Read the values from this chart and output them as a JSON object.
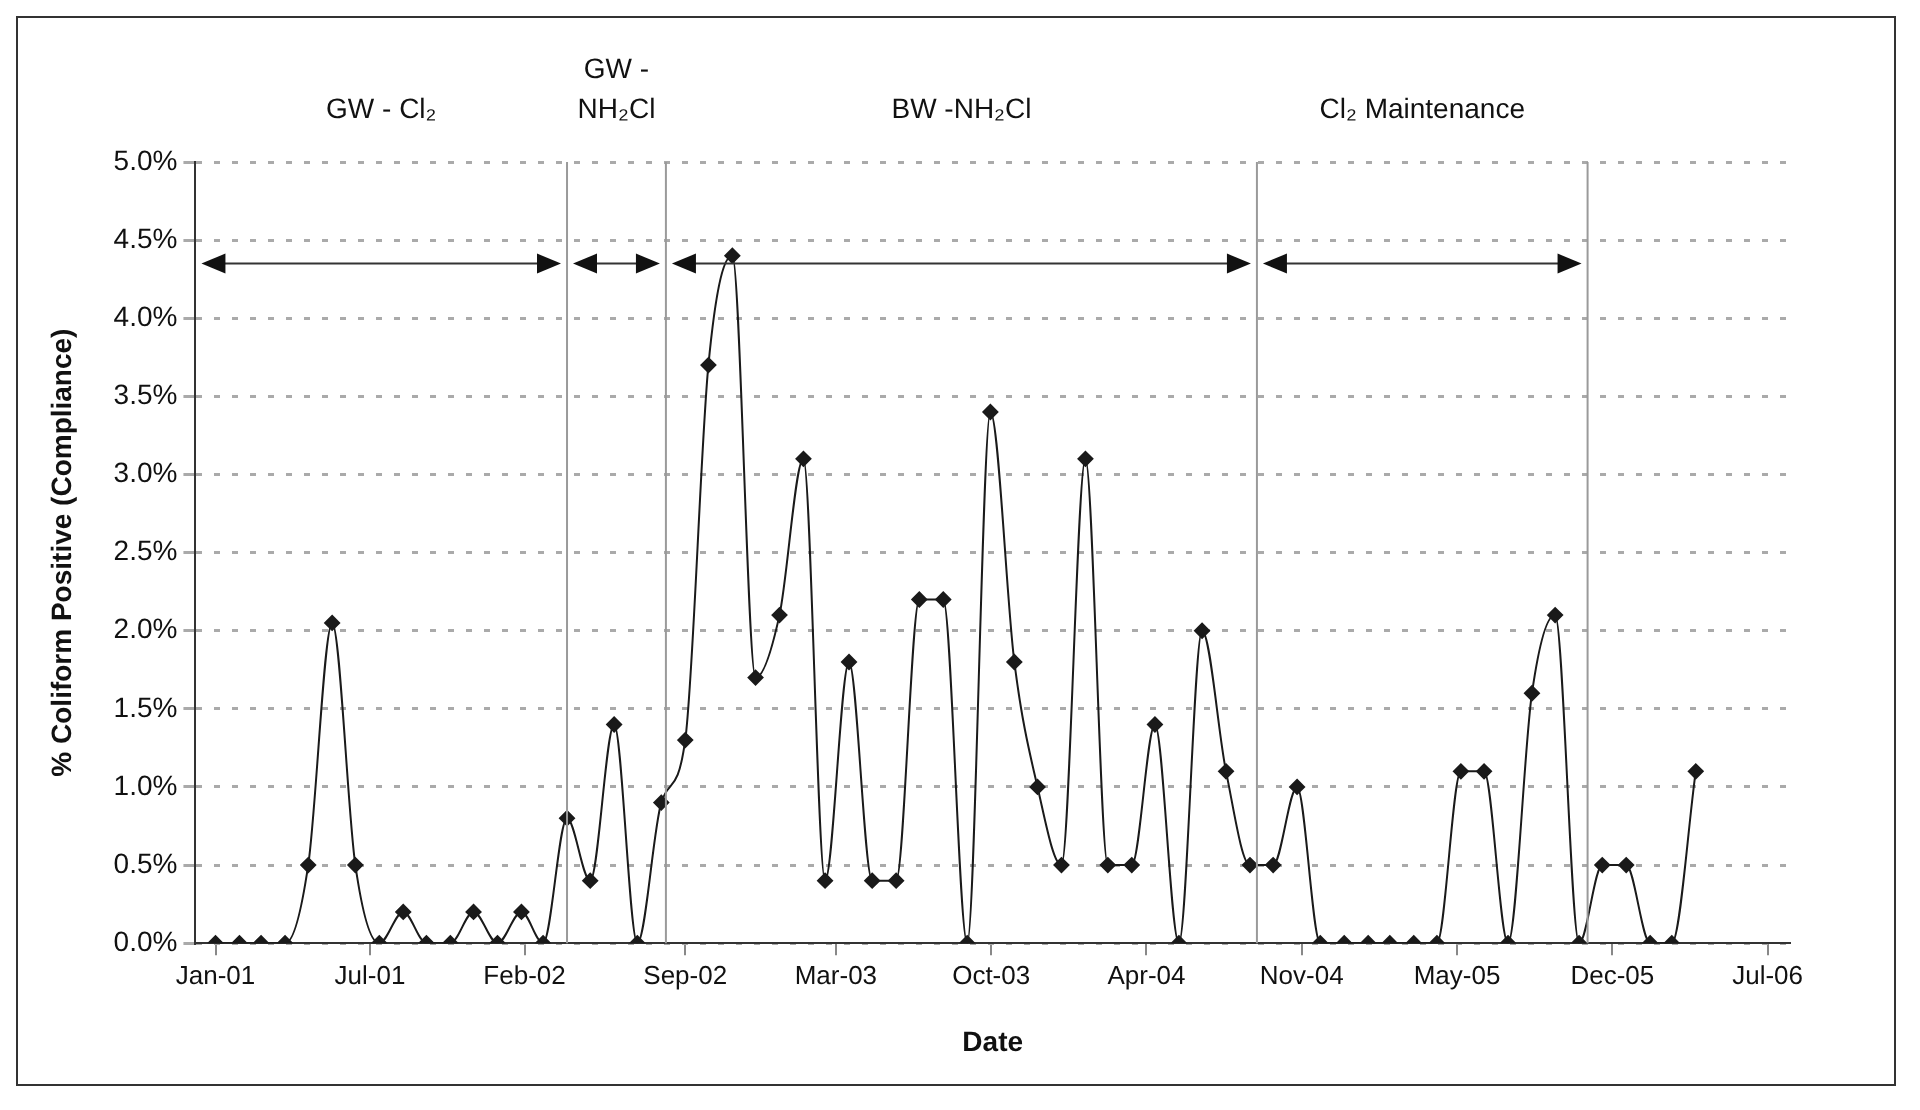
{
  "chart_data": {
    "type": "line",
    "xlabel": "Date",
    "ylabel": "% Coliform Positive (Compliance)",
    "x": [
      "2001-01",
      "2001-02",
      "2001-03",
      "2001-04",
      "2001-05",
      "2001-06",
      "2001-07",
      "2001-08",
      "2001-09",
      "2001-10",
      "2001-11",
      "2001-12",
      "2002-01",
      "2002-02",
      "2002-03",
      "2002-04",
      "2002-05",
      "2002-06",
      "2002-07",
      "2002-08",
      "2002-09",
      "2002-10",
      "2002-11",
      "2002-12",
      "2003-01",
      "2003-02",
      "2003-03",
      "2003-04",
      "2003-05",
      "2003-06",
      "2003-07",
      "2003-08",
      "2003-09",
      "2003-10",
      "2003-11",
      "2003-12",
      "2004-01",
      "2004-02",
      "2004-03",
      "2004-04",
      "2004-05",
      "2004-06",
      "2004-07",
      "2004-08",
      "2004-09",
      "2004-10",
      "2004-11",
      "2004-12",
      "2005-01",
      "2005-02",
      "2005-03",
      "2005-04",
      "2005-05",
      "2005-06",
      "2005-07",
      "2005-08",
      "2005-09",
      "2005-10",
      "2005-11",
      "2005-12",
      "2006-01",
      "2006-02",
      "2006-03",
      "2006-04"
    ],
    "series": [
      {
        "color": "#1a1a1a",
        "values": [
          0,
          0,
          0,
          0,
          0.5,
          2.05,
          0.5,
          0,
          0.2,
          0,
          0,
          0.2,
          0,
          0.2,
          0,
          0.8,
          0.4,
          1.4,
          0,
          0.9,
          1.3,
          3.7,
          4.4,
          1.7,
          2.1,
          3.1,
          0.4,
          1.8,
          0.4,
          0.4,
          2.2,
          2.2,
          0,
          3.4,
          1.8,
          1.0,
          0.5,
          3.1,
          0.5,
          0.5,
          1.4,
          0,
          2.0,
          1.1,
          0.5,
          0.5,
          1.0,
          0,
          0,
          0,
          0,
          0,
          0,
          1.1,
          1.1,
          0,
          1.6,
          2.1,
          0,
          0.5,
          0.5,
          0,
          0,
          1.1
        ]
      }
    ],
    "xlim": [
      "2000-12-06",
      "2006-08-01"
    ],
    "xticks": [
      {
        "value": "2001-01-01",
        "label": "Jan-01"
      },
      {
        "value": "2001-07-20",
        "label": "Jul-01"
      },
      {
        "value": "2002-02-05",
        "label": "Feb-02"
      },
      {
        "value": "2002-09-01",
        "label": "Sep-02"
      },
      {
        "value": "2003-03-15",
        "label": "Mar-03"
      },
      {
        "value": "2003-10-02",
        "label": "Oct-03"
      },
      {
        "value": "2004-04-20",
        "label": "Apr-04"
      },
      {
        "value": "2004-11-07",
        "label": "Nov-04"
      },
      {
        "value": "2005-05-27",
        "label": "May-05"
      },
      {
        "value": "2005-12-14",
        "label": "Dec-05"
      },
      {
        "value": "2006-07-03",
        "label": "Jul-06"
      }
    ],
    "ylim": [
      0,
      5
    ],
    "yticks": [
      {
        "value": 0,
        "label": "0.0%"
      },
      {
        "value": 0.5,
        "label": "0.5%"
      },
      {
        "value": 1,
        "label": "1.0%"
      },
      {
        "value": 1.5,
        "label": "1.5%"
      },
      {
        "value": 2,
        "label": "2.0%"
      },
      {
        "value": 2.5,
        "label": "2.5%"
      },
      {
        "value": 3,
        "label": "3.0%"
      },
      {
        "value": 3.5,
        "label": "3.5%"
      },
      {
        "value": 4,
        "label": "4.0%"
      },
      {
        "value": 4.5,
        "label": "4.5%"
      },
      {
        "value": 5,
        "label": "5.0%"
      }
    ],
    "ref_lines": [
      {
        "axis": "x",
        "value": "2002-04-01",
        "color": "#9a9a9a"
      },
      {
        "axis": "x",
        "value": "2002-08-07",
        "color": "#9a9a9a"
      },
      {
        "axis": "x",
        "value": "2004-09-10",
        "color": "#9a9a9a"
      },
      {
        "axis": "x",
        "value": "2005-11-12",
        "color": "#9a9a9a"
      }
    ],
    "annotations": [
      "GW - Cl₂",
      "GW - NH₂Cl",
      "BW -NH₂Cl",
      "Cl₂ Maintenance"
    ],
    "grid": "y",
    "marker": "diamond",
    "line_style": "solid"
  }
}
